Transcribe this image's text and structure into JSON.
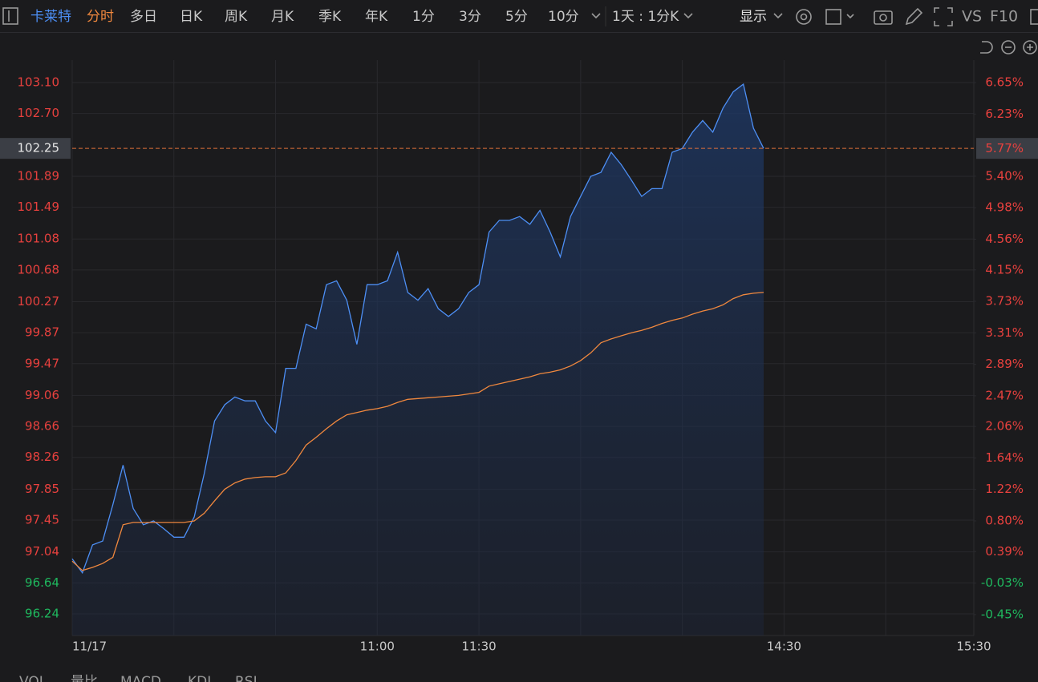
{
  "toolbar": {
    "stock": "卡莱特",
    "tabs": [
      "分时",
      "多日",
      "日K",
      "周K",
      "月K",
      "季K",
      "年K",
      "1分",
      "3分",
      "5分",
      "10分"
    ],
    "period": "1天 : 1分K",
    "display": "显示",
    "vs": "VS",
    "f10": "F10"
  },
  "bottom_tabs": [
    "VOL",
    "量比",
    "MACD",
    "KDJ",
    "RSI"
  ],
  "chart_data": {
    "type": "line",
    "x": [
      0,
      3,
      6,
      9,
      12,
      15,
      18,
      21,
      24,
      27,
      30,
      33,
      36,
      39,
      42,
      45,
      48,
      51,
      54,
      57,
      60,
      63,
      66,
      69,
      72,
      75,
      78,
      81,
      84,
      87,
      90,
      93,
      96,
      99,
      102,
      105,
      108,
      111,
      114,
      117,
      120,
      123,
      126,
      129,
      132,
      135,
      138,
      141,
      144,
      147,
      150,
      153,
      156,
      159,
      162,
      165,
      168,
      171,
      174,
      177,
      180,
      183,
      186,
      189,
      192,
      195,
      198,
      201,
      204
    ],
    "series": [
      {
        "color": "#4d8ff5",
        "values": [
          96.95,
          96.77,
          97.13,
          97.18,
          97.65,
          98.16,
          97.6,
          97.39,
          97.44,
          97.34,
          97.23,
          97.23,
          97.49,
          98.06,
          98.73,
          98.94,
          99.04,
          98.99,
          98.99,
          98.73,
          98.58,
          99.41,
          99.41,
          99.98,
          99.92,
          100.49,
          100.54,
          100.29,
          99.72,
          100.49,
          100.49,
          100.54,
          100.91,
          100.39,
          100.29,
          100.44,
          100.18,
          100.08,
          100.18,
          100.39,
          100.49,
          101.17,
          101.32,
          101.32,
          101.37,
          101.27,
          101.45,
          101.17,
          100.85,
          101.37,
          101.63,
          101.89,
          101.94,
          102.2,
          102.04,
          101.84,
          101.63,
          101.73,
          101.73,
          102.2,
          102.25,
          102.46,
          102.61,
          102.46,
          102.77,
          102.98,
          103.08,
          102.51,
          102.25
        ]
      },
      {
        "color": "#f0883e",
        "values": [
          96.92,
          96.8,
          96.84,
          96.89,
          96.97,
          97.39,
          97.42,
          97.42,
          97.42,
          97.42,
          97.42,
          97.42,
          97.44,
          97.54,
          97.7,
          97.85,
          97.93,
          97.98,
          98.0,
          98.01,
          98.01,
          98.06,
          98.22,
          98.42,
          98.52,
          98.63,
          98.73,
          98.81,
          98.84,
          98.87,
          98.89,
          98.92,
          98.97,
          99.01,
          99.02,
          99.03,
          99.04,
          99.05,
          99.06,
          99.08,
          99.1,
          99.18,
          99.21,
          99.24,
          99.27,
          99.3,
          99.34,
          99.36,
          99.39,
          99.44,
          99.51,
          99.61,
          99.74,
          99.79,
          99.83,
          99.87,
          99.9,
          99.94,
          99.99,
          100.03,
          100.06,
          100.11,
          100.15,
          100.18,
          100.23,
          100.31,
          100.36,
          100.38,
          100.39
        ]
      }
    ],
    "xlim": [
      0,
      266
    ],
    "xticks": [
      {
        "value": 0,
        "label": "11/17"
      },
      {
        "value": 30,
        "label": null
      },
      {
        "value": 60,
        "label": null
      },
      {
        "value": 90,
        "label": "11:00"
      },
      {
        "value": 120,
        "label": "11:30"
      },
      {
        "value": 150,
        "label": null
      },
      {
        "value": 180,
        "label": null
      },
      {
        "value": 210,
        "label": "14:30"
      },
      {
        "value": 240,
        "label": null
      },
      {
        "value": 266,
        "label": "15:30"
      }
    ],
    "ylim": [
      95.96,
      103.39
    ],
    "yticks": [
      {
        "value": 103.1,
        "label": "103.10"
      },
      {
        "value": 102.7,
        "label": "102.70"
      },
      101.89,
      101.49,
      101.08,
      100.68,
      100.27,
      99.87,
      99.47,
      99.06,
      98.66,
      98.26,
      97.85,
      97.45,
      97.04,
      96.64,
      96.24
    ],
    "y2lim": [
      -0.73,
      6.95
    ],
    "y2ticks": [
      {
        "value": 6.65,
        "label": "6.65%"
      },
      {
        "value": 6.23,
        "label": "6.23%"
      },
      {
        "value": 5.4,
        "label": "5.40%"
      },
      {
        "value": 4.98,
        "label": "4.98%"
      },
      {
        "value": 4.56,
        "label": "4.56%"
      },
      {
        "value": 4.15,
        "label": "4.15%"
      },
      {
        "value": 3.73,
        "label": "3.73%"
      },
      {
        "value": 3.31,
        "label": "3.31%"
      },
      {
        "value": 2.89,
        "label": "2.89%"
      },
      {
        "value": 2.47,
        "label": "2.47%"
      },
      {
        "value": 2.06,
        "label": "2.06%"
      },
      {
        "value": 1.64,
        "label": "1.64%"
      },
      {
        "value": 1.22,
        "label": "1.22%"
      },
      {
        "value": 0.8,
        "label": "0.80%"
      },
      {
        "value": 0.39,
        "label": "0.39%"
      },
      {
        "value": -0.03,
        "label": "-0.03%"
      },
      {
        "value": -0.45,
        "label": "-0.45%"
      }
    ],
    "last_price": 102.25,
    "last_pct": {
      "value": 5.77,
      "label": "5.77%"
    },
    "up_color": "#e8413e",
    "down_color": "#1fb85e",
    "grid": true
  }
}
